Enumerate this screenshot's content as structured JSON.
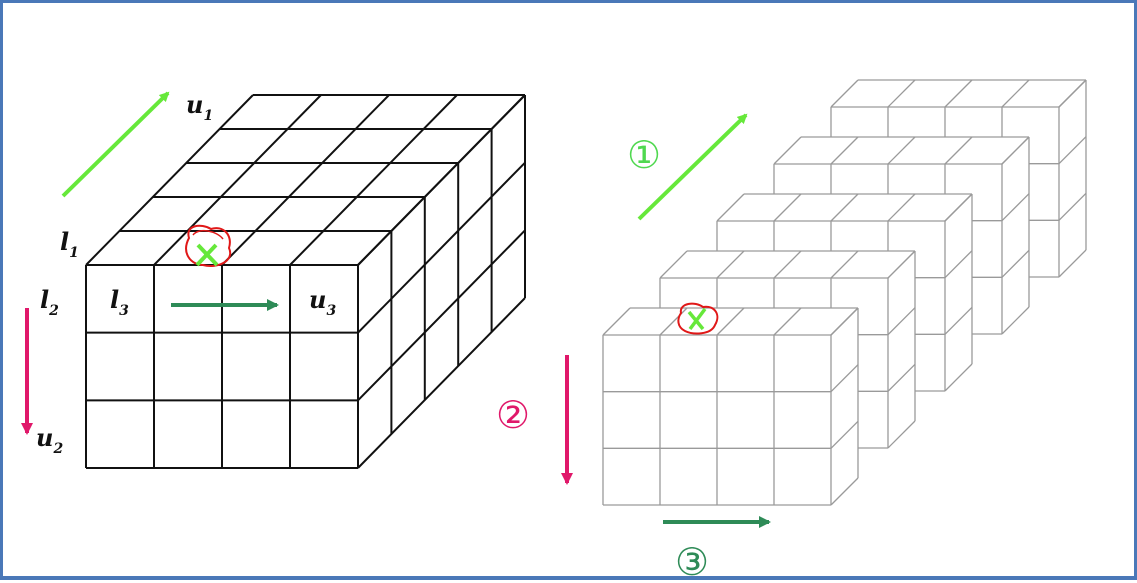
{
  "labels": {
    "u1": {
      "main": "u",
      "sub": "1"
    },
    "l1": {
      "main": "l",
      "sub": "1"
    },
    "l2": {
      "main": "l",
      "sub": "2"
    },
    "l3": {
      "main": "l",
      "sub": "3"
    },
    "u3": {
      "main": "u",
      "sub": "3"
    },
    "u2": {
      "main": "u",
      "sub": "2"
    }
  },
  "steps": [
    "①",
    "②",
    "③"
  ],
  "colors": {
    "frame": "#4a78b8",
    "arrow_light_green": "#66e83a",
    "arrow_dark_green": "#2e8b57",
    "arrow_magenta": "#e0186a",
    "step1": "#4fd84f",
    "step2": "#e0186a",
    "step3": "#2e8b57",
    "mark_red": "#e01818",
    "mark_green": "#66e83a",
    "cube_line": "#111111",
    "layer_line": "#9a9a9a"
  },
  "icons": [
    "arrow-icon",
    "cross-mark-icon"
  ]
}
